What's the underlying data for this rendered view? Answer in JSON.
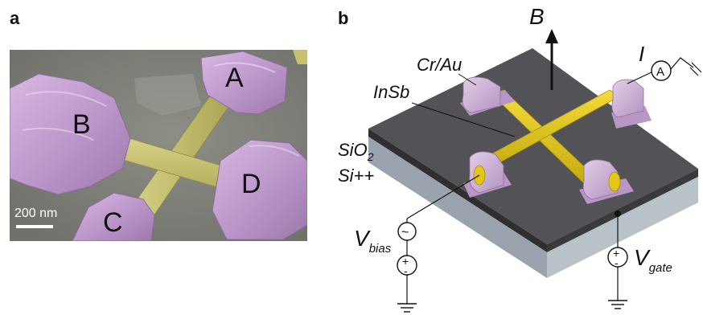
{
  "panel_a": {
    "letter": "a",
    "contact_labels": {
      "A": "A",
      "B": "B",
      "C": "C",
      "D": "D"
    },
    "scale_bar": "200 nm"
  },
  "panel_b": {
    "letter": "b",
    "field_label": "B",
    "current_label": "I",
    "ammeter_symbol": "A",
    "contact_metal": "Cr/Au",
    "nanowire": "InSb",
    "oxide_main": "SiO",
    "oxide_sub": "2",
    "substrate": "Si++",
    "vbias_main": "V",
    "vbias_sub": "bias",
    "vgate_main": "V",
    "vgate_sub": "gate",
    "ac_source_symbol": "~",
    "dc_plus": "+",
    "dc_minus": "-"
  },
  "colors": {
    "contact_purple": "#c6a3d2",
    "nanowire_yellow": "#c9c56c",
    "sem_background": "#7d7f77",
    "chip_top": "#545356",
    "sio2_edge": "#2e2e2e",
    "si_edge": "#aab3bc",
    "wire_gold": "#e3c61a"
  }
}
